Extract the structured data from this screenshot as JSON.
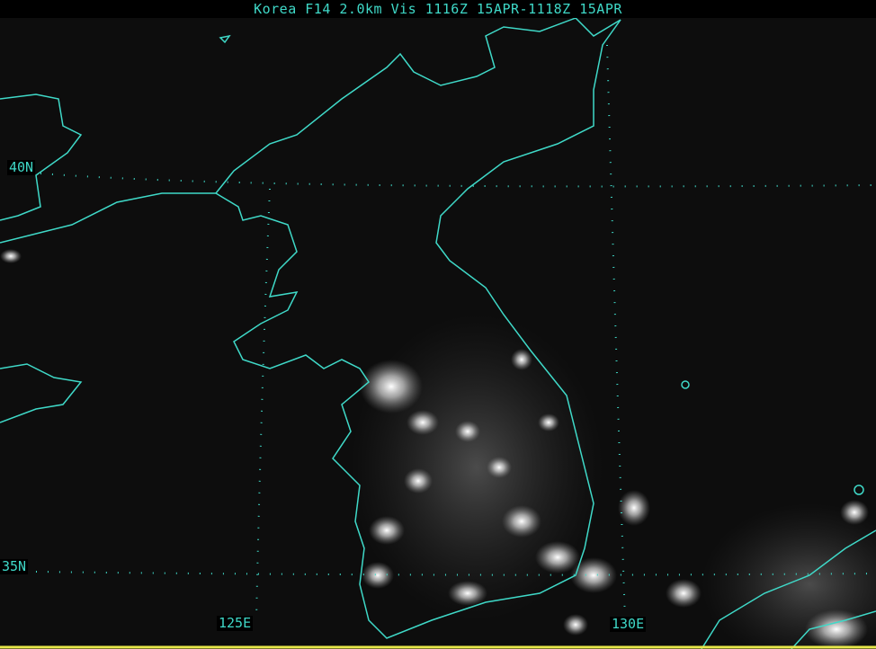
{
  "title": "Korea F14 2.0km Vis 1116Z 15APR-1118Z 15APR",
  "grid_labels": {
    "lat_40": "40N",
    "lat_35": "35N",
    "lon_125": "125E",
    "lon_130": "130E"
  },
  "colors": {
    "coastline": "#3fd9c8",
    "grid": "#3fd9c8",
    "background": "#0d0d0d",
    "city_lights": "#ffffff"
  }
}
